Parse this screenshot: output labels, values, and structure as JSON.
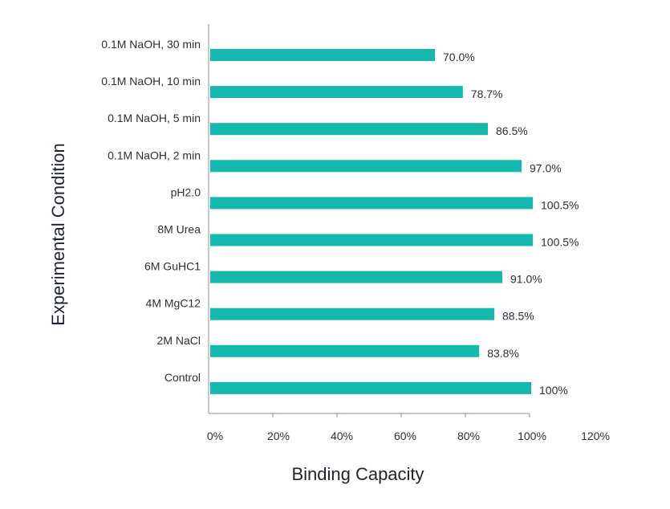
{
  "chart_data": {
    "type": "bar",
    "orientation": "horizontal",
    "categories": [
      "0.1M NaOH, 30 min",
      "0.1M NaOH, 10 min",
      "0.1M NaOH, 5 min",
      "0.1M NaOH, 2 min",
      "pH2.0",
      "8M Urea",
      "6M GuHC1",
      "4M MgC12",
      "2M NaCl",
      "Control"
    ],
    "values": [
      70.0,
      78.7,
      86.5,
      97.0,
      100.5,
      100.5,
      91.0,
      88.5,
      83.8,
      100
    ],
    "value_labels": [
      "70.0%",
      "78.7%",
      "86.5%",
      "97.0%",
      "100.5%",
      "100.5%",
      "91.0%",
      "88.5%",
      "83.8%",
      "100%"
    ],
    "xlabel": "Binding Capacity",
    "ylabel": "Experimental Condition",
    "xlim": [
      0,
      120
    ],
    "x_ticks": [
      "0%",
      "20%",
      "40%",
      "60%",
      "80%",
      "100%",
      "120%"
    ],
    "grid": false,
    "bar_color": "#14b8ad"
  }
}
